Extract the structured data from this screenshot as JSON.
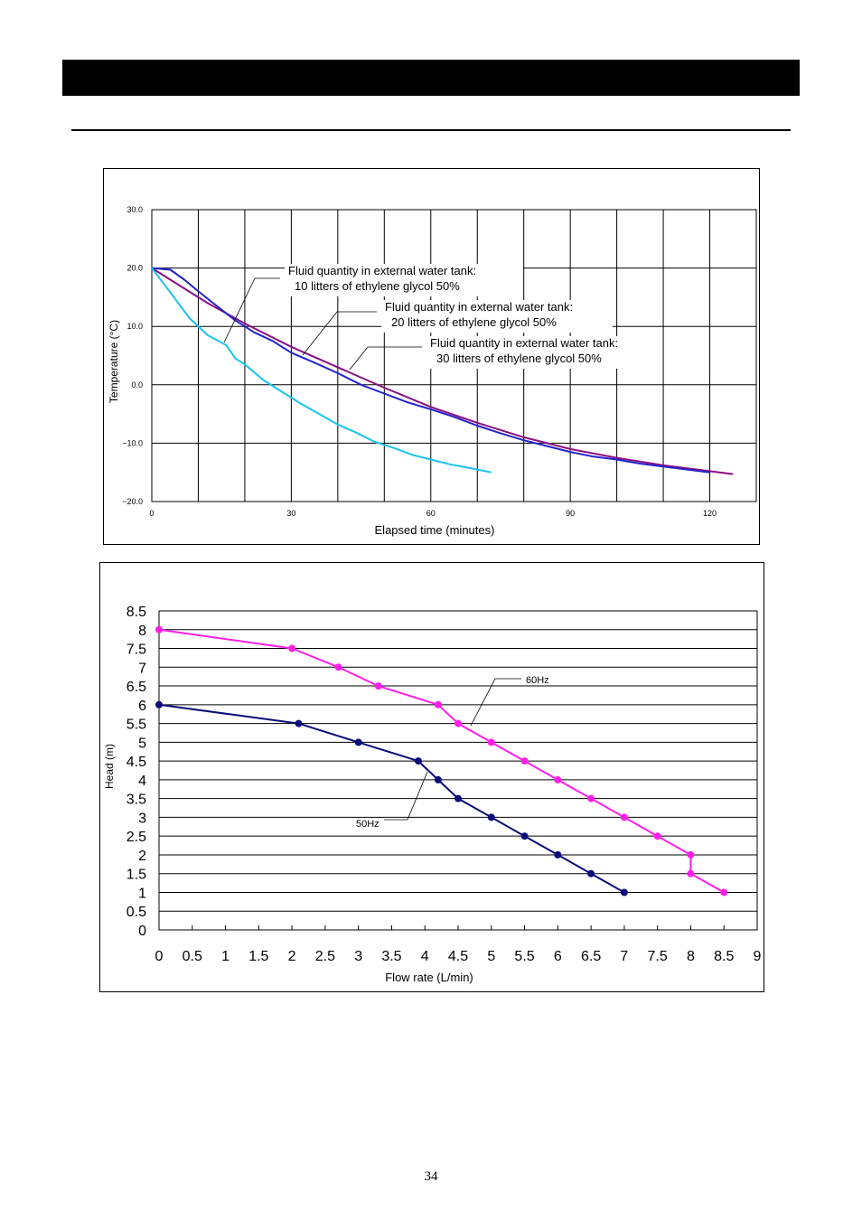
{
  "page": {
    "number": "34"
  },
  "chart_data": [
    {
      "type": "line",
      "xlabel": "Elapsed time (minutes)",
      "ylabel": "Temperature (°C)",
      "xlim": [
        0,
        130
      ],
      "ylim": [
        -20,
        30
      ],
      "x_ticks": [
        0,
        30,
        60,
        90,
        120
      ],
      "x_tick_labels": [
        "0",
        "30",
        "60",
        "90",
        "120"
      ],
      "y_ticks": [
        -20,
        -10,
        0,
        10,
        20,
        30
      ],
      "y_tick_labels": [
        "−20.0",
        "−10.0",
        "0.0",
        "10.0",
        "20.0",
        "30.0"
      ],
      "grid": true,
      "series": [
        {
          "name": "Fluid quantity in external water tank: 10 litters of ethylene glycol 50%",
          "label_lines": [
            "Fluid quantity in external water tank:",
            "10 litters of ethylene glycol 50%"
          ],
          "color": "#19c3ee",
          "x": [
            0,
            4,
            8,
            12,
            16,
            18,
            20,
            24,
            28,
            32,
            36,
            40,
            44,
            48,
            52,
            56,
            60,
            64,
            68,
            73
          ],
          "y": [
            20,
            15.8,
            11.5,
            8.5,
            6.8,
            4.5,
            3.5,
            0.8,
            -1.2,
            -3.2,
            -5,
            -6.8,
            -8.2,
            -9.8,
            -10.8,
            -12,
            -12.8,
            -13.6,
            -14.2,
            -15
          ]
        },
        {
          "name": "Fluid quantity in external water tank: 20 litters of ethylene glycol 50%",
          "label_lines": [
            "Fluid quantity in external water tank:",
            "20 litters of ethylene glycol 50%"
          ],
          "color": "#2323cc",
          "x": [
            0,
            4,
            7,
            10,
            14,
            18,
            22,
            26,
            30,
            35,
            40,
            45,
            50,
            55,
            60,
            65,
            70,
            75,
            80,
            85,
            90,
            95,
            100,
            105,
            110,
            115,
            120
          ],
          "y": [
            20,
            19.7,
            18,
            16,
            13.5,
            11,
            9,
            7.5,
            5.5,
            3.8,
            2,
            0,
            -1.5,
            -3,
            -4.2,
            -5.5,
            -7,
            -8.3,
            -9.5,
            -10.5,
            -11.5,
            -12.3,
            -12.8,
            -13.5,
            -14,
            -14.5,
            -15
          ]
        },
        {
          "name": "Fluid quantity in external water tank: 30 litters of ethylene glycol 50%",
          "label_lines": [
            "Fluid quantity in external water tank:",
            "30 litters of ethylene glycol 50%"
          ],
          "color": "#8a1080",
          "x": [
            0,
            6,
            12,
            20,
            30,
            40,
            50,
            60,
            70,
            80,
            90,
            100,
            110,
            120,
            125
          ],
          "y": [
            20,
            17,
            14,
            10.5,
            6.5,
            3,
            -0.5,
            -3.8,
            -6.5,
            -9,
            -11,
            -12.5,
            -13.8,
            -14.8,
            -15.3
          ]
        }
      ]
    },
    {
      "type": "line",
      "xlabel": "Flow rate (L/min)",
      "ylabel": "Head (m)",
      "xlim": [
        0,
        9
      ],
      "ylim": [
        0,
        8.5
      ],
      "x_ticks": [
        0,
        0.5,
        1,
        1.5,
        2,
        2.5,
        3,
        3.5,
        4,
        4.5,
        5,
        5.5,
        6,
        6.5,
        7,
        7.5,
        8,
        8.5,
        9
      ],
      "x_tick_labels": [
        "0",
        "0.5",
        "1",
        "1.5",
        "2",
        "2.5",
        "3",
        "3.5",
        "4",
        "4.5",
        "5",
        "5.5",
        "6",
        "6.5",
        "7",
        "7.5",
        "8",
        "8.5",
        "9"
      ],
      "y_ticks": [
        0,
        0.5,
        1,
        1.5,
        2,
        2.5,
        3,
        3.5,
        4,
        4.5,
        5,
        5.5,
        6,
        6.5,
        7,
        7.5,
        8,
        8.5
      ],
      "y_tick_labels": [
        "0",
        "0.5",
        "1",
        "1.5",
        "2",
        "2.5",
        "3",
        "3.5",
        "4",
        "4.5",
        "5",
        "5.5",
        "6",
        "6.5",
        "7",
        "7.5",
        "8",
        "8.5"
      ],
      "grid": true,
      "series": [
        {
          "name": "60Hz",
          "color": "#ff1ee8",
          "x": [
            0,
            2,
            2.7,
            3.3,
            4.2,
            4.5,
            5,
            5.5,
            6,
            6.5,
            7,
            7.5,
            8,
            8,
            8.5
          ],
          "y": [
            8,
            7.5,
            7,
            6.5,
            6,
            5.5,
            5,
            4.5,
            4,
            3.5,
            3,
            2.5,
            2,
            1.5,
            1
          ]
        },
        {
          "name": "50Hz",
          "color": "#0b0b7a",
          "x": [
            0,
            2.1,
            3,
            3.9,
            4.2,
            4.5,
            5,
            5.5,
            6,
            6.5,
            7
          ],
          "y": [
            6,
            5.5,
            5,
            4.5,
            4,
            3.5,
            3,
            2.5,
            2,
            1.5,
            1
          ]
        }
      ]
    }
  ]
}
